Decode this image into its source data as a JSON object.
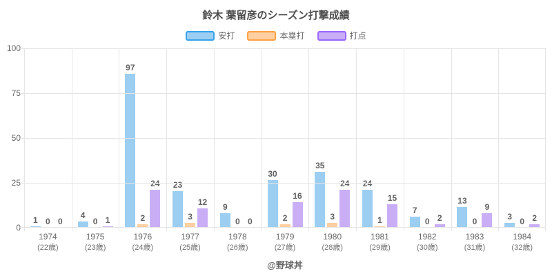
{
  "title": "鈴木 葉留彦のシーズン打撃成績",
  "attribution": "@野球丼",
  "chart_data": {
    "type": "bar",
    "title": "鈴木 葉留彦のシーズン打撃成績",
    "categories": [
      "1974",
      "1975",
      "1976",
      "1977",
      "1978",
      "1979",
      "1980",
      "1981",
      "1982",
      "1983",
      "1984"
    ],
    "category_sublabels": [
      "(22歳)",
      "(23歳)",
      "(24歳)",
      "(25歳)",
      "(26歳)",
      "(27歳)",
      "(28歳)",
      "(29歳)",
      "(30歳)",
      "(31歳)",
      "(32歳)"
    ],
    "series": [
      {
        "name": "安打",
        "fill": "#9ccef2",
        "border": "#36a2eb",
        "values": [
          1,
          4,
          97,
          23,
          9,
          30,
          35,
          24,
          7,
          13,
          3
        ]
      },
      {
        "name": "本塁打",
        "fill": "#fecfa0",
        "border": "#ff9f40",
        "values": [
          0,
          0,
          2,
          3,
          0,
          2,
          3,
          1,
          0,
          0,
          0
        ]
      },
      {
        "name": "打点",
        "fill": "#c9aef5",
        "border": "#9966ff",
        "values": [
          0,
          1,
          24,
          12,
          0,
          16,
          24,
          15,
          2,
          9,
          2
        ]
      }
    ],
    "xlabel": "",
    "ylabel": "",
    "ylim": [
      0,
      100
    ],
    "yticks": [
      0,
      25,
      50,
      75,
      100
    ],
    "grid": true,
    "legend_position": "top",
    "value_labels_shown": true,
    "colors": {
      "grid": "#e5e5e5",
      "text": "#666666",
      "title_text": "#4d4d4d"
    }
  }
}
